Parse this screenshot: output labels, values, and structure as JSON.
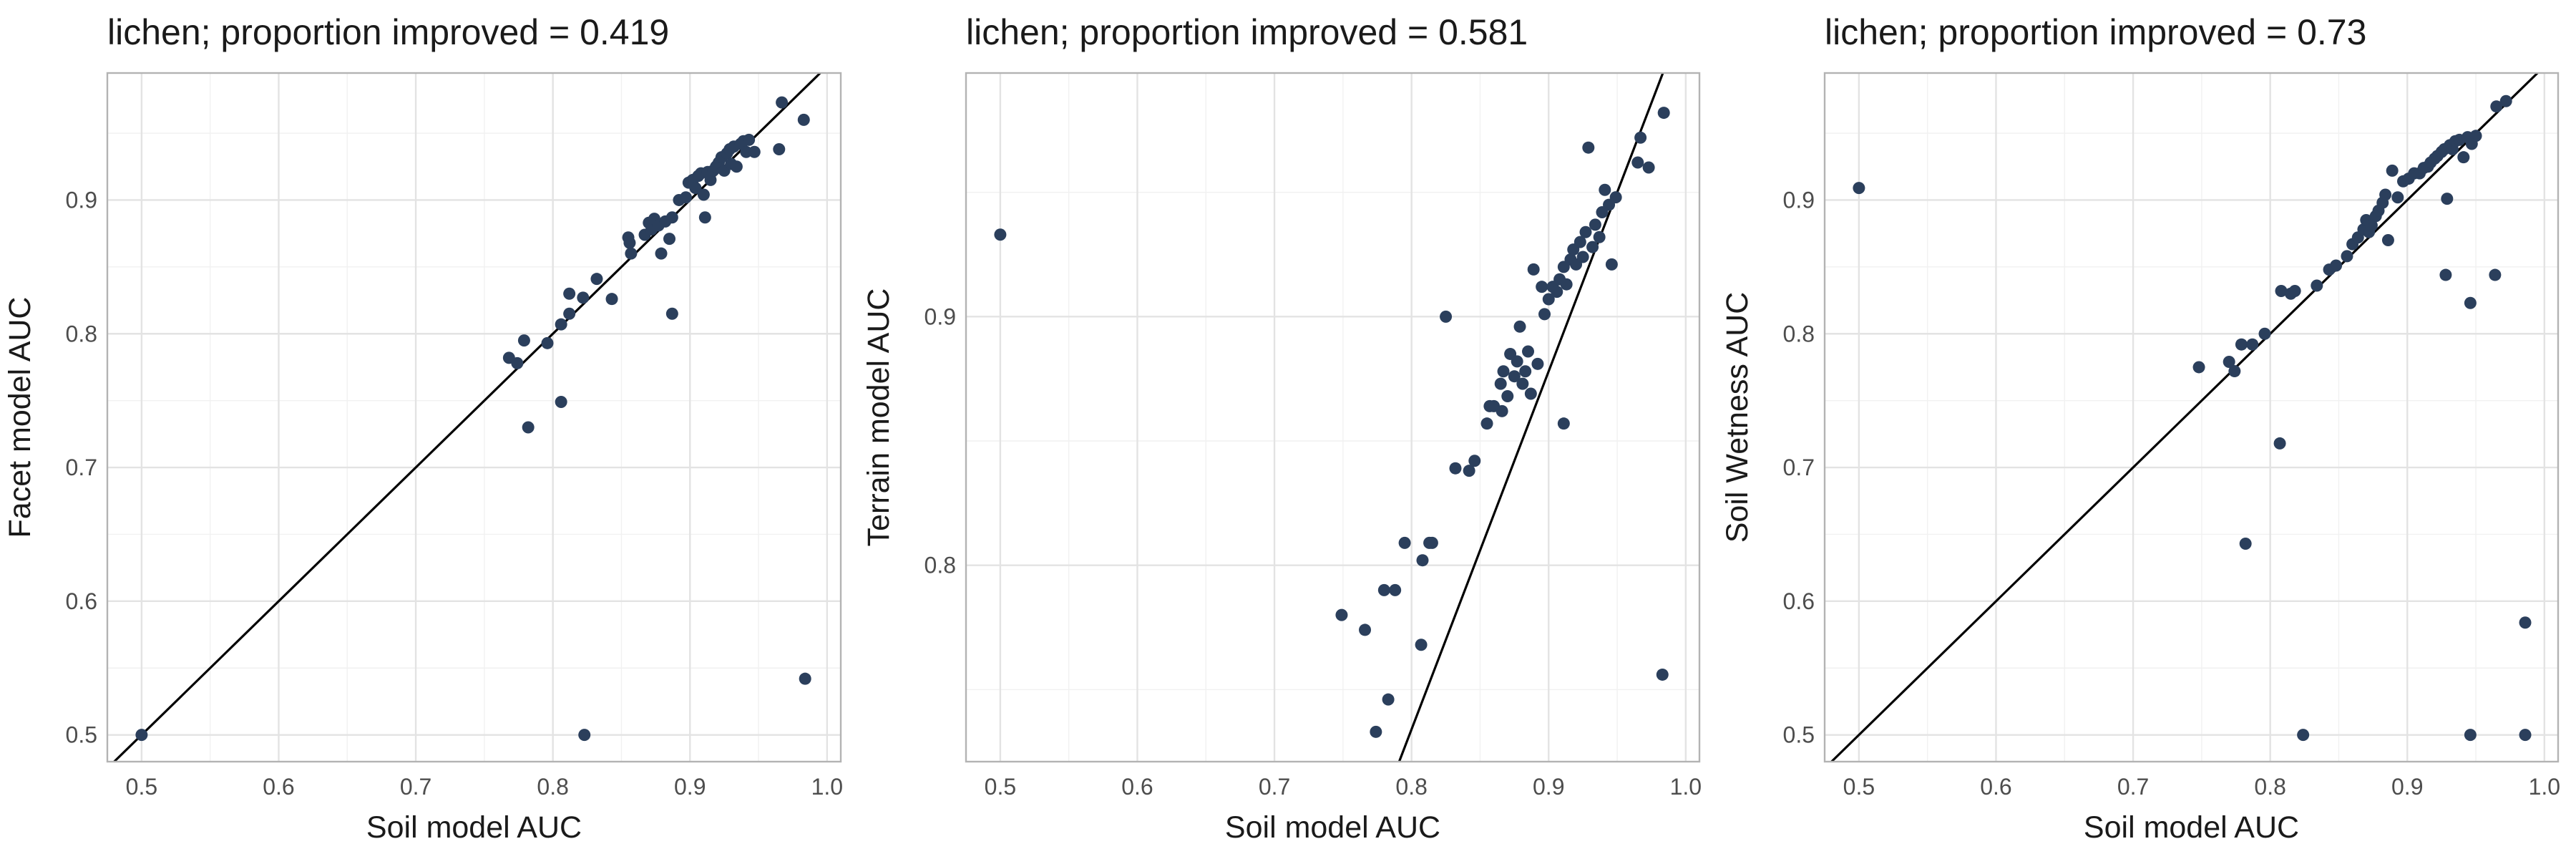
{
  "colors": {
    "point": "#2b3f5c",
    "line": "#000000",
    "grid": "#e3e3e3",
    "background": "#ffffff"
  },
  "chart_data": [
    {
      "type": "scatter",
      "title": "lichen; proportion improved = 0.419",
      "xlabel": "Soil model AUC",
      "ylabel": "Facet model AUC",
      "xlim": [
        0.475,
        1.01
      ],
      "ylim": [
        0.48,
        0.995
      ],
      "xticks": [
        0.5,
        0.6,
        0.7,
        0.8,
        0.9,
        1.0
      ],
      "xtick_labels": [
        "0.5",
        "0.6",
        "0.7",
        "0.8",
        "0.9",
        "1.0"
      ],
      "yticks": [
        0.5,
        0.6,
        0.7,
        0.8,
        0.9
      ],
      "ytick_labels": [
        "0.5",
        "0.6",
        "0.7",
        "0.8",
        "0.9"
      ],
      "grid": true,
      "reference_line": {
        "slope": 1,
        "intercept": 0
      },
      "points": [
        [
          0.5,
          0.5
        ],
        [
          0.823,
          0.5
        ],
        [
          0.984,
          0.542
        ],
        [
          0.782,
          0.73
        ],
        [
          0.806,
          0.749
        ],
        [
          0.887,
          0.815
        ],
        [
          0.768,
          0.782
        ],
        [
          0.774,
          0.778
        ],
        [
          0.779,
          0.795
        ],
        [
          0.796,
          0.793
        ],
        [
          0.806,
          0.807
        ],
        [
          0.812,
          0.815
        ],
        [
          0.812,
          0.83
        ],
        [
          0.822,
          0.827
        ],
        [
          0.832,
          0.841
        ],
        [
          0.843,
          0.826
        ],
        [
          0.855,
          0.872
        ],
        [
          0.856,
          0.868
        ],
        [
          0.857,
          0.86
        ],
        [
          0.867,
          0.874
        ],
        [
          0.87,
          0.883
        ],
        [
          0.872,
          0.878
        ],
        [
          0.874,
          0.886
        ],
        [
          0.877,
          0.881
        ],
        [
          0.879,
          0.86
        ],
        [
          0.882,
          0.884
        ],
        [
          0.885,
          0.871
        ],
        [
          0.887,
          0.887
        ],
        [
          0.892,
          0.9
        ],
        [
          0.897,
          0.902
        ],
        [
          0.899,
          0.913
        ],
        [
          0.902,
          0.915
        ],
        [
          0.904,
          0.909
        ],
        [
          0.906,
          0.918
        ],
        [
          0.908,
          0.92
        ],
        [
          0.91,
          0.904
        ],
        [
          0.911,
          0.887
        ],
        [
          0.913,
          0.921
        ],
        [
          0.915,
          0.915
        ],
        [
          0.917,
          0.922
        ],
        [
          0.919,
          0.925
        ],
        [
          0.921,
          0.928
        ],
        [
          0.923,
          0.932
        ],
        [
          0.925,
          0.922
        ],
        [
          0.927,
          0.935
        ],
        [
          0.929,
          0.938
        ],
        [
          0.93,
          0.927
        ],
        [
          0.932,
          0.94
        ],
        [
          0.934,
          0.925
        ],
        [
          0.937,
          0.942
        ],
        [
          0.939,
          0.944
        ],
        [
          0.941,
          0.936
        ],
        [
          0.943,
          0.945
        ],
        [
          0.947,
          0.936
        ],
        [
          0.965,
          0.938
        ],
        [
          0.967,
          0.973
        ],
        [
          0.983,
          0.96
        ]
      ]
    },
    {
      "type": "scatter",
      "title": "lichen; proportion improved = 0.581",
      "xlabel": "Soil model AUC",
      "ylabel": "Terrain model AUC",
      "xlim": [
        0.475,
        1.01
      ],
      "ylim": [
        0.721,
        0.998
      ],
      "xticks": [
        0.5,
        0.6,
        0.7,
        0.8,
        0.9,
        1.0
      ],
      "xtick_labels": [
        "0.5",
        "0.6",
        "0.7",
        "0.8",
        "0.9",
        "1.0"
      ],
      "yticks": [
        0.8,
        0.9
      ],
      "ytick_labels": [
        "0.8",
        "0.9"
      ],
      "grid": true,
      "reference_line": {
        "slope": 1.44,
        "intercept": -0.418
      },
      "points": [
        [
          0.5,
          0.933
        ],
        [
          0.983,
          0.756
        ],
        [
          0.911,
          0.857
        ],
        [
          0.825,
          0.9
        ],
        [
          0.774,
          0.733
        ],
        [
          0.783,
          0.746
        ],
        [
          0.807,
          0.768
        ],
        [
          0.749,
          0.78
        ],
        [
          0.766,
          0.774
        ],
        [
          0.78,
          0.79
        ],
        [
          0.788,
          0.79
        ],
        [
          0.795,
          0.809
        ],
        [
          0.808,
          0.802
        ],
        [
          0.813,
          0.809
        ],
        [
          0.815,
          0.809
        ],
        [
          0.832,
          0.839
        ],
        [
          0.842,
          0.838
        ],
        [
          0.846,
          0.842
        ],
        [
          0.855,
          0.857
        ],
        [
          0.857,
          0.864
        ],
        [
          0.86,
          0.864
        ],
        [
          0.865,
          0.873
        ],
        [
          0.866,
          0.862
        ],
        [
          0.867,
          0.878
        ],
        [
          0.87,
          0.868
        ],
        [
          0.872,
          0.885
        ],
        [
          0.875,
          0.876
        ],
        [
          0.877,
          0.882
        ],
        [
          0.879,
          0.896
        ],
        [
          0.881,
          0.873
        ],
        [
          0.883,
          0.878
        ],
        [
          0.885,
          0.886
        ],
        [
          0.887,
          0.869
        ],
        [
          0.889,
          0.919
        ],
        [
          0.892,
          0.881
        ],
        [
          0.895,
          0.912
        ],
        [
          0.897,
          0.901
        ],
        [
          0.9,
          0.907
        ],
        [
          0.903,
          0.912
        ],
        [
          0.906,
          0.91
        ],
        [
          0.908,
          0.915
        ],
        [
          0.911,
          0.92
        ],
        [
          0.913,
          0.913
        ],
        [
          0.916,
          0.923
        ],
        [
          0.918,
          0.927
        ],
        [
          0.92,
          0.921
        ],
        [
          0.923,
          0.93
        ],
        [
          0.925,
          0.924
        ],
        [
          0.927,
          0.934
        ],
        [
          0.929,
          0.968
        ],
        [
          0.932,
          0.928
        ],
        [
          0.934,
          0.937
        ],
        [
          0.937,
          0.932
        ],
        [
          0.939,
          0.942
        ],
        [
          0.941,
          0.951
        ],
        [
          0.944,
          0.945
        ],
        [
          0.946,
          0.921
        ],
        [
          0.949,
          0.948
        ],
        [
          0.965,
          0.962
        ],
        [
          0.967,
          0.972
        ],
        [
          0.973,
          0.96
        ],
        [
          0.984,
          0.982
        ]
      ]
    },
    {
      "type": "scatter",
      "title": "lichen; proportion improved = 0.73",
      "xlabel": "Soil model AUC",
      "ylabel": "Soil Wetness AUC",
      "xlim": [
        0.475,
        1.01
      ],
      "ylim": [
        0.48,
        0.995
      ],
      "xticks": [
        0.5,
        0.6,
        0.7,
        0.8,
        0.9,
        1.0
      ],
      "xtick_labels": [
        "0.5",
        "0.6",
        "0.7",
        "0.8",
        "0.9",
        "1.0"
      ],
      "yticks": [
        0.5,
        0.6,
        0.7,
        0.8,
        0.9
      ],
      "ytick_labels": [
        "0.5",
        "0.6",
        "0.7",
        "0.8",
        "0.9"
      ],
      "grid": true,
      "reference_line": {
        "slope": 1,
        "intercept": 0
      },
      "points": [
        [
          0.5,
          0.909
        ],
        [
          0.824,
          0.5
        ],
        [
          0.946,
          0.5
        ],
        [
          0.986,
          0.5
        ],
        [
          0.986,
          0.584
        ],
        [
          0.782,
          0.643
        ],
        [
          0.807,
          0.718
        ],
        [
          0.928,
          0.844
        ],
        [
          0.946,
          0.823
        ],
        [
          0.964,
          0.844
        ],
        [
          0.748,
          0.775
        ],
        [
          0.77,
          0.779
        ],
        [
          0.774,
          0.772
        ],
        [
          0.779,
          0.792
        ],
        [
          0.787,
          0.792
        ],
        [
          0.796,
          0.8
        ],
        [
          0.808,
          0.832
        ],
        [
          0.815,
          0.83
        ],
        [
          0.818,
          0.832
        ],
        [
          0.834,
          0.836
        ],
        [
          0.843,
          0.848
        ],
        [
          0.848,
          0.851
        ],
        [
          0.856,
          0.858
        ],
        [
          0.86,
          0.867
        ],
        [
          0.864,
          0.872
        ],
        [
          0.868,
          0.878
        ],
        [
          0.87,
          0.885
        ],
        [
          0.872,
          0.876
        ],
        [
          0.874,
          0.881
        ],
        [
          0.877,
          0.888
        ],
        [
          0.879,
          0.892
        ],
        [
          0.882,
          0.898
        ],
        [
          0.884,
          0.904
        ],
        [
          0.886,
          0.87
        ],
        [
          0.889,
          0.922
        ],
        [
          0.893,
          0.902
        ],
        [
          0.897,
          0.914
        ],
        [
          0.901,
          0.916
        ],
        [
          0.905,
          0.92
        ],
        [
          0.909,
          0.92
        ],
        [
          0.912,
          0.924
        ],
        [
          0.915,
          0.925
        ],
        [
          0.917,
          0.928
        ],
        [
          0.92,
          0.931
        ],
        [
          0.922,
          0.933
        ],
        [
          0.925,
          0.936
        ],
        [
          0.927,
          0.938
        ],
        [
          0.929,
          0.901
        ],
        [
          0.931,
          0.941
        ],
        [
          0.933,
          0.938
        ],
        [
          0.935,
          0.944
        ],
        [
          0.938,
          0.945
        ],
        [
          0.941,
          0.932
        ],
        [
          0.944,
          0.947
        ],
        [
          0.947,
          0.942
        ],
        [
          0.95,
          0.948
        ],
        [
          0.965,
          0.97
        ],
        [
          0.972,
          0.974
        ]
      ]
    }
  ]
}
